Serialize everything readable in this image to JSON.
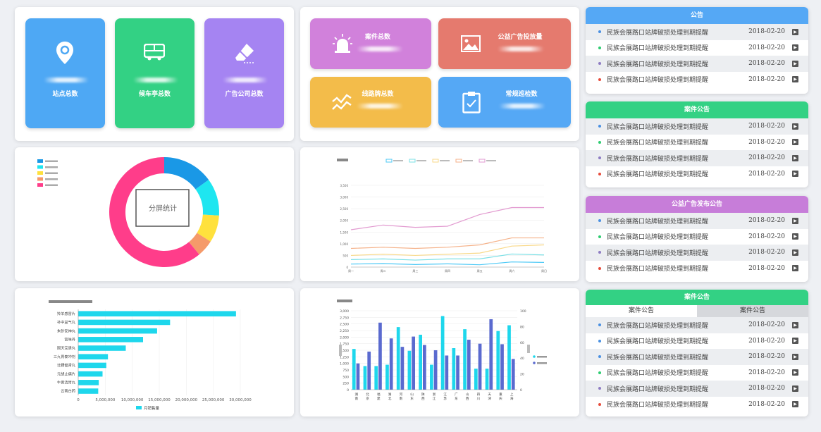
{
  "stats": {
    "site_total": "站点总数",
    "shelter_total": "候车亭总数",
    "ad_company_total": "广告公司总数",
    "case_total": "案件总数",
    "public_ad_count": "公益广告投放量",
    "route_sign_total": "线路牌总数",
    "routine_patrol": "常规巡检数"
  },
  "donut_chart": {
    "center_label": "分屏统计",
    "colors": [
      "#1a98e6",
      "#1ee6f0",
      "#ffe13d",
      "#f59a6a",
      "#ff3d8a"
    ],
    "chart_data": {
      "type": "pie",
      "values": [
        15,
        11,
        8,
        5,
        61
      ]
    }
  },
  "line_chart": {
    "colors": [
      "#4dc9f6",
      "#7be0e6",
      "#f9d98a",
      "#f5b28a",
      "#e29ad0"
    ],
    "chart_data": {
      "type": "line",
      "categories": [
        "周一",
        "周二",
        "周三",
        "周四",
        "周五",
        "周六",
        "周日"
      ],
      "ylim": [
        0,
        3500
      ],
      "yticks": [
        "0",
        "500",
        "1,000",
        "1,500",
        "2,000",
        "2,500",
        "3,000",
        "3,500"
      ],
      "series": [
        {
          "values": [
            130,
            150,
            110,
            140,
            100,
            220,
            200
          ]
        },
        {
          "values": [
            320,
            350,
            300,
            350,
            350,
            560,
            520
          ]
        },
        {
          "values": [
            500,
            550,
            500,
            550,
            600,
            900,
            950
          ]
        },
        {
          "values": [
            800,
            850,
            800,
            850,
            950,
            1250,
            1250
          ]
        },
        {
          "values": [
            1600,
            1800,
            1700,
            1750,
            2250,
            2550,
            2550
          ]
        }
      ]
    }
  },
  "hbar_chart": {
    "legend": "月销售量",
    "color": "#1ed7ec",
    "chart_data": {
      "type": "bar",
      "categories": [
        "云南白药",
        "牛黄清胃丸",
        "元胡止痛片",
        "壮腰健肾丸",
        "三九胃泰冲剂",
        "固天宝退丸",
        "宫味丹",
        "朱砂安神丸",
        "补中益气丸",
        "羚羊感冒片"
      ],
      "values": [
        3700000,
        3800000,
        4500000,
        5200000,
        5500000,
        8800000,
        12000000,
        14600000,
        17000000,
        29200000
      ],
      "xlim": [
        0,
        30000000
      ],
      "xticks": [
        "0",
        "5,000,000",
        "10,000,000",
        "15,000,000",
        "20,000,000",
        "25,000,000",
        "30,000,000"
      ]
    }
  },
  "vbar_chart": {
    "ytick_labels_left": [
      "0",
      "250",
      "500",
      "750",
      "1,000",
      "1,250",
      "1,500",
      "1,750",
      "2,000",
      "2,250",
      "2,500",
      "2,750",
      "3,000"
    ],
    "ytick_labels_right": [
      "0",
      "20",
      "40",
      "60",
      "80",
      "100"
    ],
    "colors": [
      "#1ed7ec",
      "#5a6acf"
    ],
    "chart_data": {
      "type": "bar",
      "categories": [
        "湖南",
        "北京",
        "福建",
        "湖北",
        "河南",
        "山东",
        "陕西",
        "浙江",
        "江苏",
        "广东",
        "山西",
        "四川",
        "天津",
        "重庆",
        "上海"
      ],
      "series": [
        {
          "values": [
            1550,
            900,
            900,
            950,
            2380,
            1480,
            2090,
            950,
            2800,
            1580,
            2300,
            800,
            800,
            2230,
            2450
          ]
        },
        {
          "values": [
            1000,
            1450,
            2550,
            1950,
            1630,
            2020,
            1700,
            1500,
            1300,
            1300,
            1900,
            1750,
            2680,
            1730,
            1170
          ]
        }
      ],
      "ylim": [
        0,
        3000
      ],
      "y2lim": [
        0,
        100
      ]
    }
  },
  "notice_panels": [
    {
      "title": "公告",
      "color": "#55a8f5",
      "rows": [
        {
          "text": "民族会展路口站牌破损处理到期提醒",
          "date": "2018-02-20",
          "dot": "#4a90e2"
        },
        {
          "text": "民族会展路口站牌破损处理到期提醒",
          "date": "2018-02-20",
          "dot": "#2ecc71"
        },
        {
          "text": "民族会展路口站牌破损处理到期提醒",
          "date": "2018-02-20",
          "dot": "#8e7cc3"
        },
        {
          "text": "民族会展路口站牌破损处理到期提醒",
          "date": "2018-02-20",
          "dot": "#e74c3c"
        }
      ]
    },
    {
      "title": "案件公告",
      "color": "#33d184",
      "rows": [
        {
          "text": "民族会展路口站牌破损处理到期提醒",
          "date": "2018-02-20",
          "dot": "#4a90e2"
        },
        {
          "text": "民族会展路口站牌破损处理到期提醒",
          "date": "2018-02-20",
          "dot": "#2ecc71"
        },
        {
          "text": "民族会展路口站牌破损处理到期提醒",
          "date": "2018-02-20",
          "dot": "#8e7cc3"
        },
        {
          "text": "民族会展路口站牌破损处理到期提醒",
          "date": "2018-02-20",
          "dot": "#e74c3c"
        }
      ]
    },
    {
      "title": "公益广告发布公告",
      "color": "#c77dd9",
      "rows": [
        {
          "text": "民族会展路口站牌破损处理到期提醒",
          "date": "2018-02-20",
          "dot": "#4a90e2"
        },
        {
          "text": "民族会展路口站牌破损处理到期提醒",
          "date": "2018-02-20",
          "dot": "#2ecc71"
        },
        {
          "text": "民族会展路口站牌破损处理到期提醒",
          "date": "2018-02-20",
          "dot": "#8e7cc3"
        },
        {
          "text": "民族会展路口站牌破损处理到期提醒",
          "date": "2018-02-20",
          "dot": "#e74c3c"
        }
      ]
    },
    {
      "title": "案件公告",
      "color": "#33d184",
      "tabs": [
        "案件公告",
        "案件公告"
      ],
      "rows": [
        {
          "text": "民族会展路口站牌破损处理到期提醒",
          "date": "2018-02-20",
          "dot": "#4a90e2"
        },
        {
          "text": "民族会展路口站牌破损处理到期提醒",
          "date": "2018-02-20",
          "dot": "#4a90e2"
        },
        {
          "text": "民族会展路口站牌破损处理到期提醒",
          "date": "2018-02-20",
          "dot": "#4a90e2"
        },
        {
          "text": "民族会展路口站牌破损处理到期提醒",
          "date": "2018-02-20",
          "dot": "#2ecc71"
        },
        {
          "text": "民族会展路口站牌破损处理到期提醒",
          "date": "2018-02-20",
          "dot": "#8e7cc3"
        },
        {
          "text": "民族会展路口站牌破损处理到期提醒",
          "date": "2018-02-20",
          "dot": "#e74c3c"
        }
      ]
    }
  ]
}
